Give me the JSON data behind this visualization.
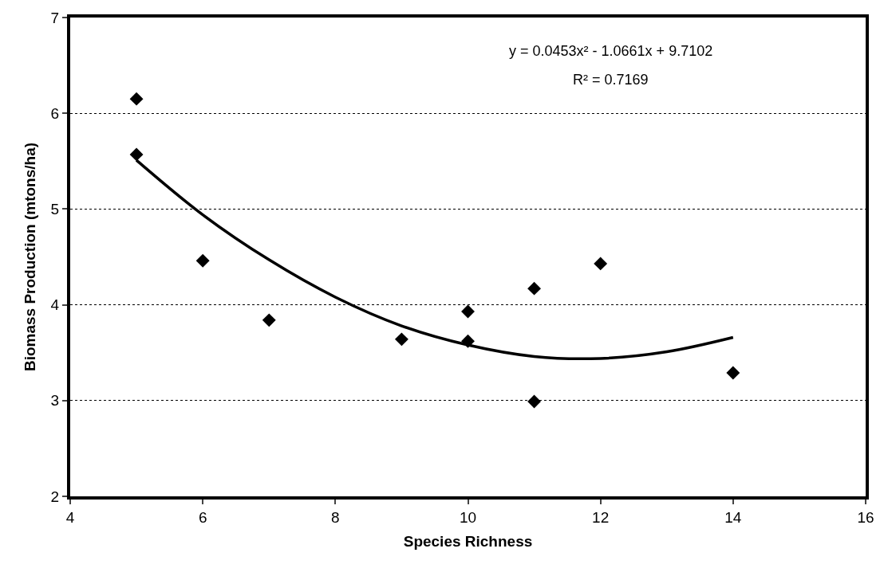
{
  "chart_data": {
    "type": "scatter",
    "xlabel": "Species Richness",
    "ylabel": "Biomass Production (mtons/ha)",
    "xlim": [
      4,
      16
    ],
    "xticks": [
      4,
      6,
      8,
      10,
      12,
      14,
      16
    ],
    "ylim": [
      2,
      7
    ],
    "yticks": [
      2,
      3,
      4,
      5,
      6,
      7
    ],
    "grid": "y",
    "marker": "diamond",
    "series": [
      {
        "color": "#000000",
        "x": [
          5,
          5,
          6,
          7,
          9,
          10,
          10,
          11,
          11,
          12,
          14
        ],
        "values": [
          6.15,
          5.57,
          4.46,
          3.84,
          3.64,
          3.93,
          3.62,
          4.17,
          2.99,
          4.43,
          3.29
        ]
      },
      {
        "type": "line",
        "color": "#000000",
        "marker": "none",
        "line_style": "solid",
        "x": [
          5,
          6,
          7,
          8,
          9,
          10,
          11,
          12,
          13,
          14
        ],
        "values": [
          5.51,
          4.94,
          4.47,
          4.08,
          3.78,
          3.58,
          3.46,
          3.44,
          3.51,
          3.66
        ]
      }
    ],
    "annotations": [
      {
        "text": "y = 0.0453x² - 1.0661x + 9.7102"
      },
      {
        "text": "R² = 0.7169"
      }
    ]
  }
}
